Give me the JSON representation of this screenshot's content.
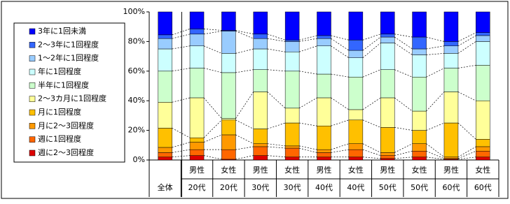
{
  "chart_data": {
    "type": "stacked_bar_100",
    "categories": [
      "全体",
      "男性",
      "女性",
      "男性",
      "女性",
      "男性",
      "女性",
      "男性",
      "女性",
      "男性",
      "女性"
    ],
    "sub_categories": [
      null,
      "20代",
      "20代",
      "30代",
      "30代",
      "40代",
      "40代",
      "50代",
      "50代",
      "60代",
      "60代"
    ],
    "series": [
      {
        "name": "週に2～3回程度",
        "color": "#dd0000",
        "values": [
          2,
          3,
          0.5,
          3,
          2,
          2,
          2,
          1,
          2,
          0.5,
          2
        ]
      },
      {
        "name": "週に1回程度",
        "color": "#ff6600",
        "values": [
          3,
          4,
          6.5,
          6,
          6,
          3,
          5,
          2,
          4,
          0.5,
          4
        ]
      },
      {
        "name": "月に2～3回程度",
        "color": "#ff9900",
        "values": [
          3.5,
          5,
          10,
          2,
          1.5,
          2,
          4,
          2,
          5,
          1,
          3
        ]
      },
      {
        "name": "月に1回程度",
        "color": "#ffc000",
        "values": [
          13,
          3,
          10,
          10,
          15.5,
          16,
          16,
          17,
          9,
          23,
          5
        ]
      },
      {
        "name": "2～3カ月に1回程度",
        "color": "#ffff99",
        "values": [
          17.5,
          27,
          1,
          25,
          10,
          19,
          7,
          20,
          13,
          21,
          26
        ]
      },
      {
        "name": "半年に1回程度",
        "color": "#ccffcc",
        "values": [
          21,
          20,
          31,
          15,
          25,
          16,
          22,
          19,
          23,
          16,
          24
        ]
      },
      {
        "name": "年に1回程度",
        "color": "#ccffff",
        "values": [
          15,
          15,
          13,
          14,
          13,
          19,
          13,
          18,
          15,
          10,
          16
        ]
      },
      {
        "name": "1～2年に1回程度",
        "color": "#99ccff",
        "values": [
          7,
          8,
          15,
          7,
          7,
          5,
          5,
          4,
          4,
          5,
          4
        ]
      },
      {
        "name": "2～3年に1回程度",
        "color": "#3366ff",
        "values": [
          2.5,
          3.5,
          0.5,
          3,
          1,
          2,
          7,
          2,
          8,
          3,
          2
        ]
      },
      {
        "name": "3年に1回未満",
        "color": "#0000ff",
        "values": [
          15.5,
          11.5,
          12.5,
          15,
          19,
          16,
          19,
          15,
          17,
          20,
          14
        ]
      }
    ],
    "ylim": [
      0,
      100
    ],
    "yticks": [
      {
        "value": 0,
        "label": "0%"
      },
      {
        "value": 20,
        "label": "20%"
      },
      {
        "value": 40,
        "label": "40%"
      },
      {
        "value": 60,
        "label": "60%"
      },
      {
        "value": 80,
        "label": "80%"
      },
      {
        "value": 100,
        "label": "100%"
      }
    ],
    "legend": "left"
  }
}
